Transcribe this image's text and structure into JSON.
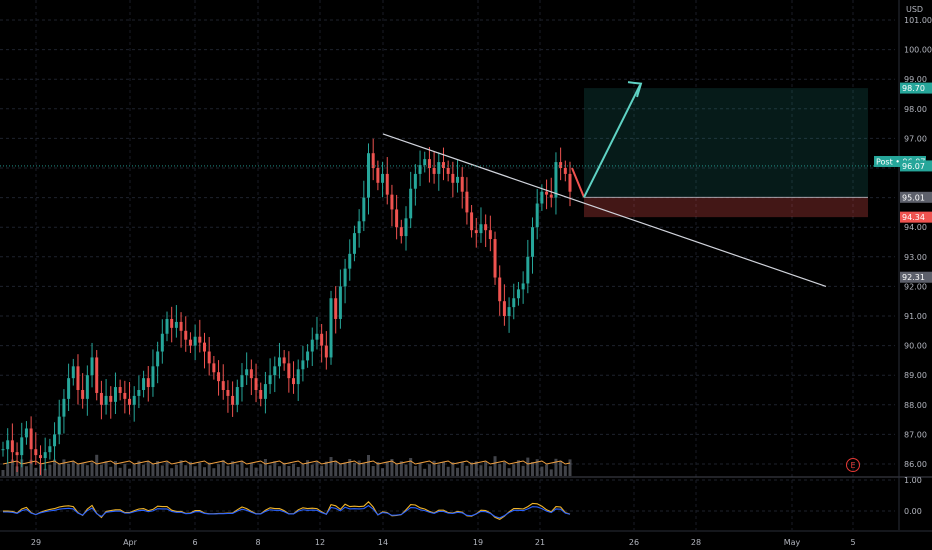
{
  "currency": "USD",
  "chart_data": {
    "type": "candlestick",
    "price_axis": {
      "ticks": [
        "101.00",
        "100.00",
        "99.00",
        "98.00",
        "97.00",
        "96.00",
        "95.00",
        "94.00",
        "93.00",
        "92.00",
        "91.00",
        "90.00",
        "89.00",
        "88.00",
        "87.00",
        "86.00"
      ],
      "range": [
        85.6,
        101.6
      ]
    },
    "oscillator_axis": {
      "ticks": [
        "1.00",
        "0.00"
      ]
    },
    "time_axis": {
      "ticks": [
        "29",
        "Apr",
        "6",
        "8",
        "12",
        "14",
        "19",
        "21",
        "26",
        "28",
        "May",
        "5"
      ]
    },
    "price_tags": [
      {
        "label": "98.70",
        "value": 98.7,
        "color": "#26a69a"
      },
      {
        "label": "Post • 96.07",
        "value": 96.22,
        "color": "#26a69a"
      },
      {
        "label": "96.07",
        "value": 96.07,
        "color": "#26a69a"
      },
      {
        "label": "95.01",
        "value": 95.01,
        "color": "#5d606b"
      },
      {
        "label": "94.34",
        "value": 94.34,
        "color": "#ef5350"
      },
      {
        "label": "92.31",
        "value": 92.31,
        "color": "#5d606b"
      }
    ],
    "trendline": {
      "from": [
        97.15
      ],
      "to": [
        92.0
      ]
    },
    "long_position": {
      "target": 98.7,
      "entry": 95.01,
      "stop": 94.34
    },
    "close_path": [
      86.5,
      86.8,
      86.4,
      86.3,
      86.9,
      87.2,
      86.5,
      86.3,
      86.2,
      86.4,
      86.6,
      87.0,
      87.6,
      88.2,
      88.9,
      89.3,
      88.5,
      88.2,
      89.0,
      89.6,
      88.4,
      88.0,
      88.3,
      88.1,
      88.6,
      88.4,
      88.2,
      88.0,
      88.3,
      88.5,
      88.9,
      88.6,
      89.3,
      89.8,
      90.4,
      90.9,
      90.6,
      90.8,
      90.5,
      90.2,
      90.0,
      90.3,
      90.1,
      89.8,
      89.4,
      89.1,
      88.8,
      88.5,
      88.3,
      88.0,
      88.6,
      89.0,
      89.2,
      88.9,
      88.5,
      88.2,
      88.7,
      89.0,
      89.3,
      89.6,
      89.4,
      88.9,
      88.7,
      89.2,
      89.5,
      89.8,
      90.2,
      90.4,
      90.0,
      89.6,
      91.6,
      90.9,
      92.0,
      92.6,
      93.1,
      93.8,
      94.2,
      95.0,
      96.5,
      96.0,
      95.5,
      95.8,
      95.1,
      94.6,
      94.0,
      93.7,
      94.3,
      95.3,
      95.8,
      96.1,
      96.3,
      96.0,
      95.8,
      96.2,
      96.0,
      95.8,
      95.5,
      95.7,
      95.2,
      94.5,
      93.9,
      93.8,
      94.1,
      93.9,
      93.6,
      92.3,
      91.5,
      91.0,
      91.3,
      91.6,
      91.9,
      92.1,
      93.0,
      94.0,
      94.8,
      95.2,
      95.1,
      95.0,
      96.2,
      96.0,
      95.8,
      95.2
    ]
  }
}
